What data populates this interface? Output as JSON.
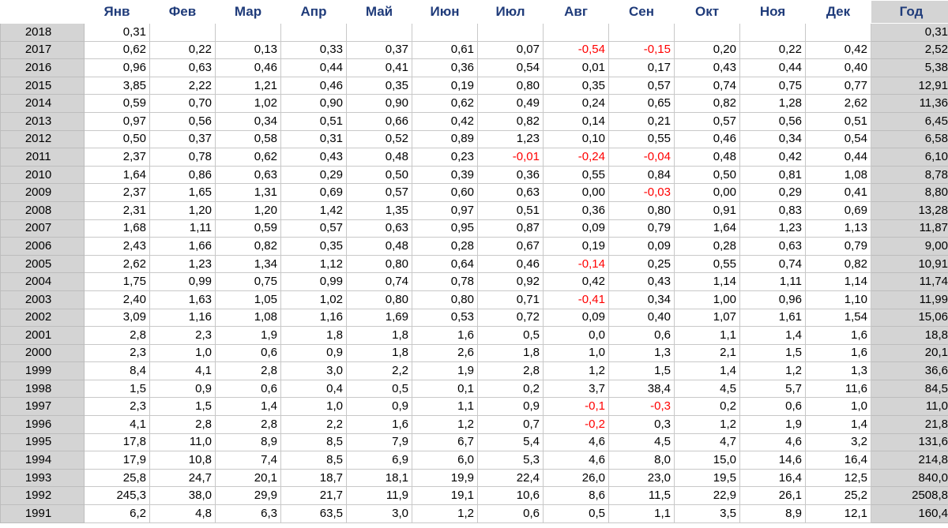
{
  "table": {
    "headers": [
      "",
      "Янв",
      "Фев",
      "Мар",
      "Апр",
      "Май",
      "Июн",
      "Июл",
      "Авг",
      "Сен",
      "Окт",
      "Ноя",
      "Дек",
      "Год"
    ],
    "rows": [
      [
        "2018",
        "0,31",
        "",
        "",
        "",
        "",
        "",
        "",
        "",
        "",
        "",
        "",
        "",
        "0,31"
      ],
      [
        "2017",
        "0,62",
        "0,22",
        "0,13",
        "0,33",
        "0,37",
        "0,61",
        "0,07",
        "-0,54",
        "-0,15",
        "0,20",
        "0,22",
        "0,42",
        "2,52"
      ],
      [
        "2016",
        "0,96",
        "0,63",
        "0,46",
        "0,44",
        "0,41",
        "0,36",
        "0,54",
        "0,01",
        "0,17",
        "0,43",
        "0,44",
        "0,40",
        "5,38"
      ],
      [
        "2015",
        "3,85",
        "2,22",
        "1,21",
        "0,46",
        "0,35",
        "0,19",
        "0,80",
        "0,35",
        "0,57",
        "0,74",
        "0,75",
        "0,77",
        "12,91"
      ],
      [
        "2014",
        "0,59",
        "0,70",
        "1,02",
        "0,90",
        "0,90",
        "0,62",
        "0,49",
        "0,24",
        "0,65",
        "0,82",
        "1,28",
        "2,62",
        "11,36"
      ],
      [
        "2013",
        "0,97",
        "0,56",
        "0,34",
        "0,51",
        "0,66",
        "0,42",
        "0,82",
        "0,14",
        "0,21",
        "0,57",
        "0,56",
        "0,51",
        "6,45"
      ],
      [
        "2012",
        "0,50",
        "0,37",
        "0,58",
        "0,31",
        "0,52",
        "0,89",
        "1,23",
        "0,10",
        "0,55",
        "0,46",
        "0,34",
        "0,54",
        "6,58"
      ],
      [
        "2011",
        "2,37",
        "0,78",
        "0,62",
        "0,43",
        "0,48",
        "0,23",
        "-0,01",
        "-0,24",
        "-0,04",
        "0,48",
        "0,42",
        "0,44",
        "6,10"
      ],
      [
        "2010",
        "1,64",
        "0,86",
        "0,63",
        "0,29",
        "0,50",
        "0,39",
        "0,36",
        "0,55",
        "0,84",
        "0,50",
        "0,81",
        "1,08",
        "8,78"
      ],
      [
        "2009",
        "2,37",
        "1,65",
        "1,31",
        "0,69",
        "0,57",
        "0,60",
        "0,63",
        "0,00",
        "-0,03",
        "0,00",
        "0,29",
        "0,41",
        "8,80"
      ],
      [
        "2008",
        "2,31",
        "1,20",
        "1,20",
        "1,42",
        "1,35",
        "0,97",
        "0,51",
        "0,36",
        "0,80",
        "0,91",
        "0,83",
        "0,69",
        "13,28"
      ],
      [
        "2007",
        "1,68",
        "1,11",
        "0,59",
        "0,57",
        "0,63",
        "0,95",
        "0,87",
        "0,09",
        "0,79",
        "1,64",
        "1,23",
        "1,13",
        "11,87"
      ],
      [
        "2006",
        "2,43",
        "1,66",
        "0,82",
        "0,35",
        "0,48",
        "0,28",
        "0,67",
        "0,19",
        "0,09",
        "0,28",
        "0,63",
        "0,79",
        "9,00"
      ],
      [
        "2005",
        "2,62",
        "1,23",
        "1,34",
        "1,12",
        "0,80",
        "0,64",
        "0,46",
        "-0,14",
        "0,25",
        "0,55",
        "0,74",
        "0,82",
        "10,91"
      ],
      [
        "2004",
        "1,75",
        "0,99",
        "0,75",
        "0,99",
        "0,74",
        "0,78",
        "0,92",
        "0,42",
        "0,43",
        "1,14",
        "1,11",
        "1,14",
        "11,74"
      ],
      [
        "2003",
        "2,40",
        "1,63",
        "1,05",
        "1,02",
        "0,80",
        "0,80",
        "0,71",
        "-0,41",
        "0,34",
        "1,00",
        "0,96",
        "1,10",
        "11,99"
      ],
      [
        "2002",
        "3,09",
        "1,16",
        "1,08",
        "1,16",
        "1,69",
        "0,53",
        "0,72",
        "0,09",
        "0,40",
        "1,07",
        "1,61",
        "1,54",
        "15,06"
      ],
      [
        "2001",
        "2,8",
        "2,3",
        "1,9",
        "1,8",
        "1,8",
        "1,6",
        "0,5",
        "0,0",
        "0,6",
        "1,1",
        "1,4",
        "1,6",
        "18,8"
      ],
      [
        "2000",
        "2,3",
        "1,0",
        "0,6",
        "0,9",
        "1,8",
        "2,6",
        "1,8",
        "1,0",
        "1,3",
        "2,1",
        "1,5",
        "1,6",
        "20,1"
      ],
      [
        "1999",
        "8,4",
        "4,1",
        "2,8",
        "3,0",
        "2,2",
        "1,9",
        "2,8",
        "1,2",
        "1,5",
        "1,4",
        "1,2",
        "1,3",
        "36,6"
      ],
      [
        "1998",
        "1,5",
        "0,9",
        "0,6",
        "0,4",
        "0,5",
        "0,1",
        "0,2",
        "3,7",
        "38,4",
        "4,5",
        "5,7",
        "11,6",
        "84,5"
      ],
      [
        "1997",
        "2,3",
        "1,5",
        "1,4",
        "1,0",
        "0,9",
        "1,1",
        "0,9",
        "-0,1",
        "-0,3",
        "0,2",
        "0,6",
        "1,0",
        "11,0"
      ],
      [
        "1996",
        "4,1",
        "2,8",
        "2,8",
        "2,2",
        "1,6",
        "1,2",
        "0,7",
        "-0,2",
        "0,3",
        "1,2",
        "1,9",
        "1,4",
        "21,8"
      ],
      [
        "1995",
        "17,8",
        "11,0",
        "8,9",
        "8,5",
        "7,9",
        "6,7",
        "5,4",
        "4,6",
        "4,5",
        "4,7",
        "4,6",
        "3,2",
        "131,6"
      ],
      [
        "1994",
        "17,9",
        "10,8",
        "7,4",
        "8,5",
        "6,9",
        "6,0",
        "5,3",
        "4,6",
        "8,0",
        "15,0",
        "14,6",
        "16,4",
        "214,8"
      ],
      [
        "1993",
        "25,8",
        "24,7",
        "20,1",
        "18,7",
        "18,1",
        "19,9",
        "22,4",
        "26,0",
        "23,0",
        "19,5",
        "16,4",
        "12,5",
        "840,0"
      ],
      [
        "1992",
        "245,3",
        "38,0",
        "29,9",
        "21,7",
        "11,9",
        "19,1",
        "10,6",
        "8,6",
        "11,5",
        "22,9",
        "26,1",
        "25,2",
        "2508,8"
      ],
      [
        "1991",
        "6,2",
        "4,8",
        "6,3",
        "63,5",
        "3,0",
        "1,2",
        "0,6",
        "0,5",
        "1,1",
        "3,5",
        "8,9",
        "12,1",
        "160,4"
      ]
    ]
  },
  "colors": {
    "header_text": "#1f3b7a",
    "side_fill": "#d4d4d4",
    "negative_text": "#ff0000",
    "grid": "#c8c8c8"
  }
}
